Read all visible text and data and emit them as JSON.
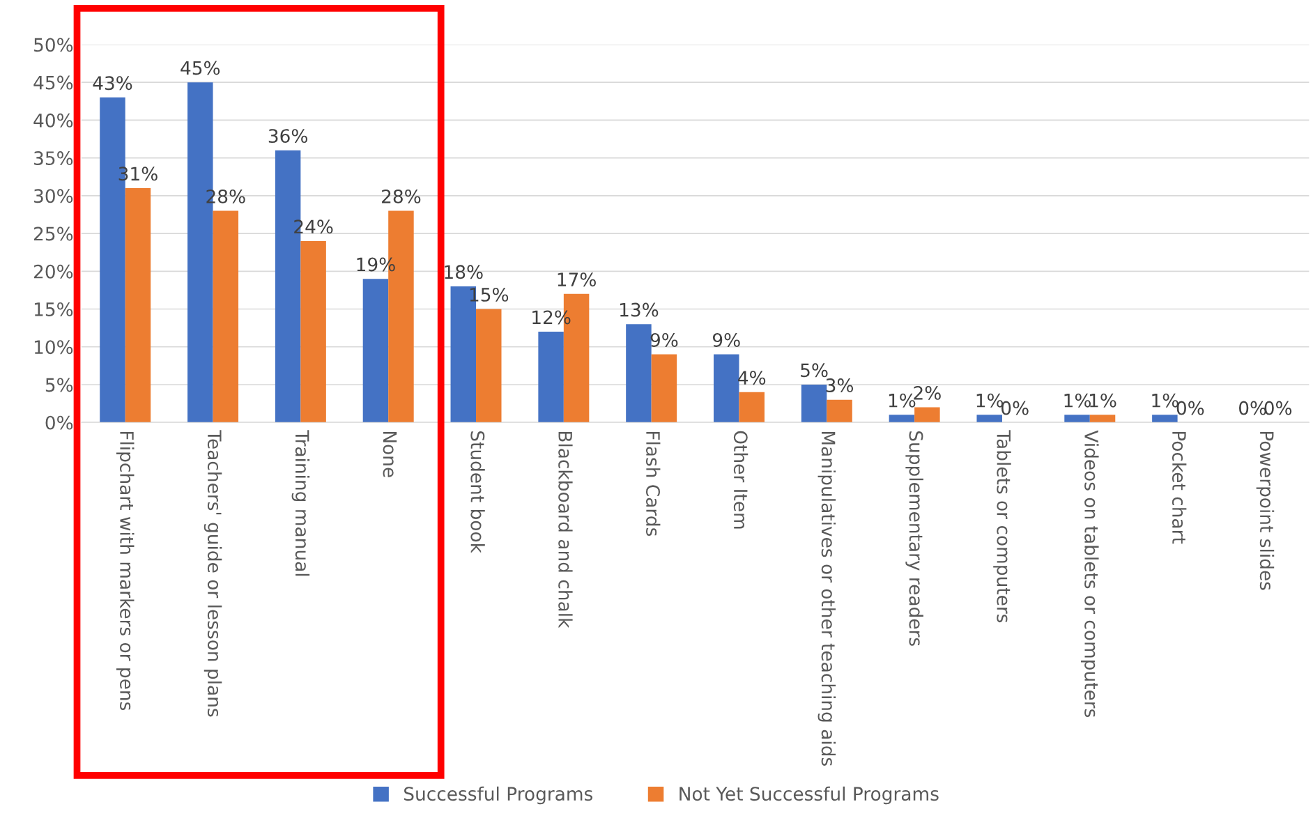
{
  "chart_data": {
    "type": "bar",
    "categories": [
      "Flipchart with markers or pens",
      "Teachers' guide or lesson plans",
      "Training manual",
      "None",
      "Student book",
      "Blackboard and chalk",
      "Flash Cards",
      "Other Item",
      "Manipulatives or other teaching aids",
      "Supplementary readers",
      "Tablets or computers",
      "Videos on tablets or computers",
      "Pocket chart",
      "Powerpoint slides"
    ],
    "series": [
      {
        "name": "Successful Programs",
        "color": "#4472c4",
        "values": [
          43,
          45,
          36,
          19,
          18,
          12,
          13,
          9,
          5,
          1,
          1,
          1,
          1,
          0
        ],
        "value_labels": [
          "43%",
          "45%",
          "36%",
          "19%",
          "18%",
          "12%",
          "13%",
          "9%",
          "5%",
          "1%",
          "1%",
          "1%",
          "1%",
          "0%"
        ]
      },
      {
        "name": "Not Yet Successful Programs",
        "color": "#ed7d31",
        "values": [
          31,
          28,
          24,
          28,
          15,
          17,
          9,
          4,
          3,
          2,
          0,
          1,
          0,
          0
        ],
        "value_labels": [
          "31%",
          "28%",
          "24%",
          "28%",
          "15%",
          "17%",
          "9%",
          "4%",
          "3%",
          "2%",
          "0%",
          "1%",
          "0%",
          "0%"
        ]
      }
    ],
    "ylim": [
      0,
      50
    ],
    "yticks": [
      {
        "value": 0,
        "label": "0%"
      },
      {
        "value": 5,
        "label": "5%"
      },
      {
        "value": 10,
        "label": "10%"
      },
      {
        "value": 15,
        "label": "15%"
      },
      {
        "value": 20,
        "label": "20%"
      },
      {
        "value": 25,
        "label": "25%"
      },
      {
        "value": 30,
        "label": "30%"
      },
      {
        "value": 35,
        "label": "35%"
      },
      {
        "value": 40,
        "label": "40%"
      },
      {
        "value": 45,
        "label": "45%"
      },
      {
        "value": 50,
        "label": "50%"
      }
    ],
    "grid": "y",
    "legend": "bottom"
  }
}
